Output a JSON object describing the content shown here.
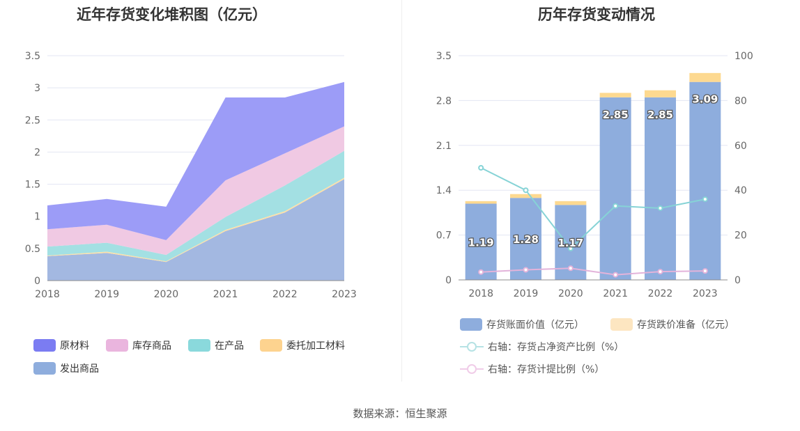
{
  "source": "数据来源：恒生聚源",
  "chart_data": [
    {
      "type": "area",
      "stacked": true,
      "title": "近年存货变化堆积图（亿元）",
      "x": [
        "2018",
        "2019",
        "2020",
        "2021",
        "2022",
        "2023"
      ],
      "y_ticks": [
        "0",
        "0.5",
        "1",
        "1.5",
        "2",
        "2.5",
        "3",
        "3.5"
      ],
      "ylim": [
        0,
        3.5
      ],
      "series": [
        {
          "name": "发出商品",
          "color": "#a3b8e1",
          "values": [
            0.38,
            0.43,
            0.29,
            0.77,
            1.06,
            1.58
          ]
        },
        {
          "name": "委托加工材料",
          "color": "#fde0a7",
          "values": [
            0.01,
            0.02,
            0.01,
            0.02,
            0.02,
            0.02
          ]
        },
        {
          "name": "在产品",
          "color": "#a3e0e3",
          "values": [
            0.14,
            0.14,
            0.1,
            0.2,
            0.4,
            0.42
          ]
        },
        {
          "name": "库存商品",
          "color": "#f0c9e3",
          "values": [
            0.27,
            0.28,
            0.23,
            0.57,
            0.5,
            0.38
          ]
        },
        {
          "name": "原材料",
          "color": "#9c9cf7",
          "values": [
            0.37,
            0.4,
            0.52,
            1.29,
            0.87,
            0.69
          ]
        }
      ],
      "legend": [
        "原材料",
        "库存商品",
        "在产品",
        "委托加工材料",
        "发出商品"
      ],
      "legend_colors": [
        "#7b7cf2",
        "#eab5de",
        "#8ad9dc",
        "#fdd38f",
        "#8eaddd"
      ]
    },
    {
      "type": "bar+line",
      "title": "历年存货变动情况",
      "x": [
        "2018",
        "2019",
        "2020",
        "2021",
        "2022",
        "2023"
      ],
      "y_left_ticks": [
        "0",
        "0.7",
        "1.4",
        "2.1",
        "2.8",
        "3.5"
      ],
      "y_left_lim": [
        0,
        3.5
      ],
      "y_right_ticks": [
        "0",
        "20",
        "40",
        "60",
        "80",
        "100"
      ],
      "y_right_lim": [
        0,
        100
      ],
      "bars": [
        {
          "name": "存货账面价值（亿元）",
          "color": "#8eaddd",
          "values": [
            1.19,
            1.28,
            1.17,
            2.85,
            2.85,
            3.09
          ],
          "labels": [
            "1.19",
            "1.28",
            "1.17",
            "2.85",
            "2.85",
            "3.09"
          ]
        },
        {
          "name": "存货跌价准备（亿元）",
          "color": "#fdd990",
          "values": [
            0.04,
            0.06,
            0.06,
            0.07,
            0.11,
            0.14
          ]
        }
      ],
      "lines": [
        {
          "name": "右轴：存货占净资产比例（%）",
          "color": "#86d3d6",
          "values": [
            50,
            40,
            14,
            33,
            32,
            36
          ]
        },
        {
          "name": "右轴：存货计提比例（%）",
          "color": "#e3b3da",
          "values": [
            3.5,
            4.5,
            5.2,
            2.3,
            3.7,
            4.0
          ]
        }
      ]
    }
  ]
}
